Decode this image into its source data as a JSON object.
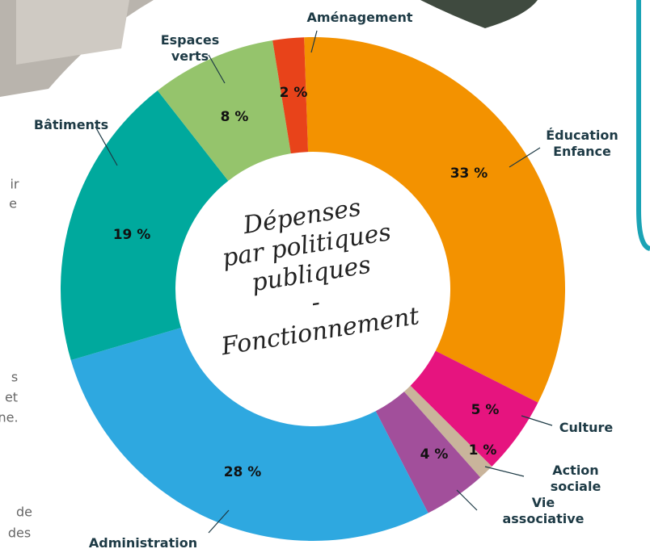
{
  "chart_data": {
    "type": "donut",
    "title": "Dépenses\npar politiques\npubliques\n-\nFonctionnement",
    "categories": [
      "Éducation\nEnfance",
      "Culture",
      "Action sociale",
      "Vie associative",
      "Administration",
      "Bâtiments",
      "Espaces\nverts",
      "Aménagement"
    ],
    "values": [
      33,
      5,
      1,
      4,
      28,
      19,
      8,
      2
    ],
    "value_labels": [
      "33 %",
      "5 %",
      "1 %",
      "4 %",
      "28 %",
      "19 %",
      "8 %",
      "2 %"
    ],
    "colors": [
      "#f39200",
      "#e6147f",
      "#c9b49b",
      "#a24f9b",
      "#2ea8e0",
      "#00a99d",
      "#95c46c",
      "#e8431a"
    ]
  },
  "side_text": [
    "ir",
    "e",
    "s",
    "et",
    "ne.",
    "de",
    "des"
  ]
}
